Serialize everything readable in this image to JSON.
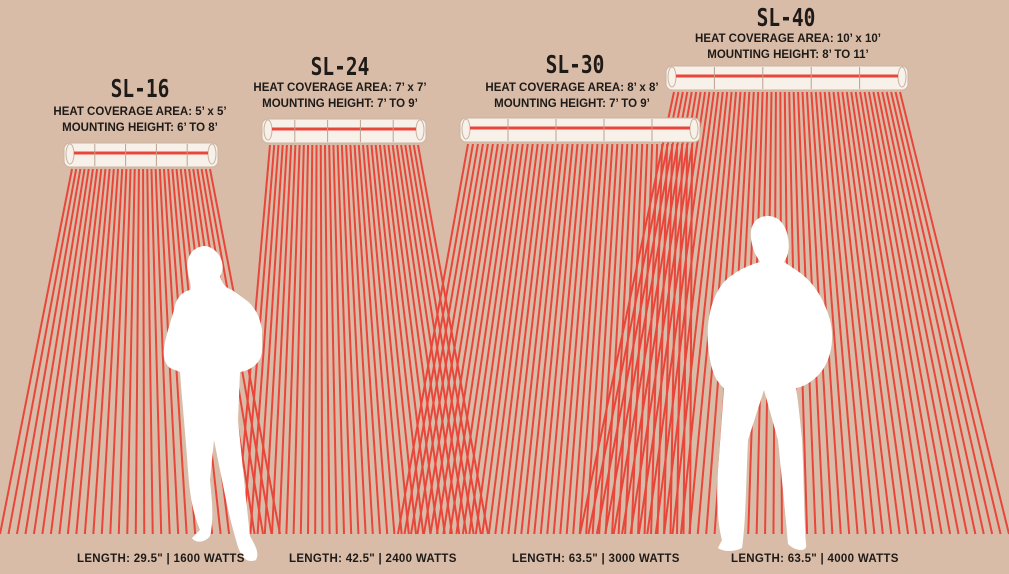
{
  "heaters": [
    {
      "model": "SL-16",
      "coverage": "HEAT COVERAGE AREA: 5’ x 5’",
      "mounting": "MOUNTING HEIGHT: 6’ TO 8’",
      "length": "LENGTH: 29.5\" | 1600 WATTS"
    },
    {
      "model": "SL-24",
      "coverage": "HEAT COVERAGE AREA: 7’ x 7’",
      "mounting": "MOUNTING HEIGHT: 7’ TO 9’",
      "length": "LENGTH: 42.5\" | 2400 WATTS"
    },
    {
      "model": "SL-30",
      "coverage": "HEAT COVERAGE AREA: 8’ x 8’",
      "mounting": "MOUNTING HEIGHT: 7’ TO 9’",
      "length": "LENGTH: 63.5\" | 3000 WATTS"
    },
    {
      "model": "SL-40",
      "coverage": "HEAT COVERAGE AREA: 10’ x 10’",
      "mounting": "MOUNTING HEIGHT: 8’ TO 11’",
      "length": "LENGTH: 63.5\" | 4000 WATTS"
    }
  ],
  "colors": {
    "background": "#d9bca8",
    "beam": "#e8463a",
    "heater_body": "#f7f1ea",
    "text": "#1e1a17",
    "silhouette": "#ffffff"
  },
  "icons": [
    "person-silhouette",
    "heater-bar"
  ]
}
